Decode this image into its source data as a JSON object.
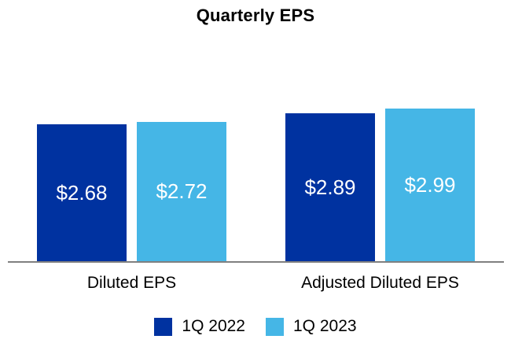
{
  "chart_data": {
    "type": "bar",
    "title": "Quarterly EPS",
    "categories": [
      "Diluted EPS",
      "Adjusted Diluted EPS"
    ],
    "series": [
      {
        "name": "1Q 2022",
        "color": "#0032A0",
        "values": [
          2.68,
          2.89
        ],
        "data_labels": [
          "$2.68",
          "$2.89"
        ]
      },
      {
        "name": "1Q 2023",
        "color": "#45B6E6",
        "values": [
          2.72,
          2.99
        ],
        "data_labels": [
          "$2.72",
          "$2.99"
        ]
      }
    ],
    "value_prefix": "$",
    "ylim": [
      0,
      3.3
    ],
    "grid": false,
    "y_axis_visible": false,
    "legend_position": "bottom",
    "data_label_color": "#ffffff",
    "axis_line_color": "#808080",
    "title_color": "#000000",
    "category_label_color": "#000000"
  }
}
